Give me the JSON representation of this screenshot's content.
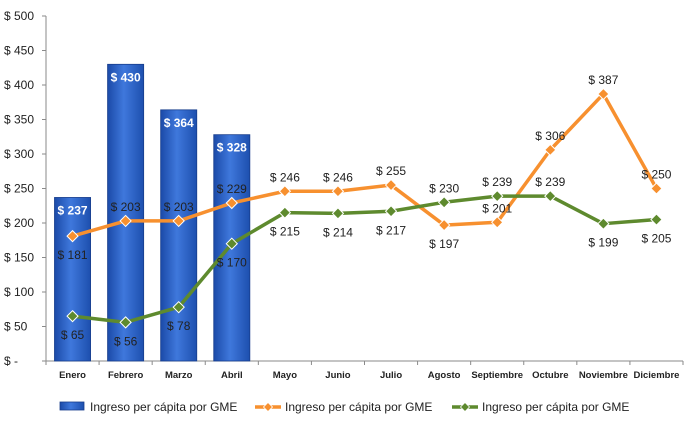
{
  "chart_data": {
    "type": "bar-line",
    "categories": [
      "Enero",
      "Febrero",
      "Marzo",
      "Abril",
      "Mayo",
      "Junio",
      "Julio",
      "Agosto",
      "Septiembre",
      "Octubre",
      "Noviembre",
      "Diciembre"
    ],
    "y_ticks": [
      "$ -",
      "$ 50",
      "$ 100",
      "$ 150",
      "$ 200",
      "$ 250",
      "$ 300",
      "$ 350",
      "$ 400",
      "$ 450",
      "$ 500"
    ],
    "ylim": [
      0,
      500
    ],
    "grid": false,
    "legend_position": "bottom",
    "series": [
      {
        "name": "Ingreso per cápita por GME",
        "type": "bar",
        "color": "#2e64c8",
        "values": [
          237,
          430,
          364,
          328,
          null,
          null,
          null,
          null,
          null,
          null,
          null,
          null
        ],
        "labels": [
          "$ 237",
          "$ 430",
          "$ 364",
          "$ 328",
          null,
          null,
          null,
          null,
          null,
          null,
          null,
          null
        ]
      },
      {
        "name": "Ingreso per cápita por GME",
        "type": "line",
        "color": "#f7902f",
        "values": [
          181,
          203,
          203,
          229,
          246,
          246,
          255,
          197,
          201,
          306,
          387,
          250
        ],
        "labels": [
          "$ 181",
          "$ 203",
          "$ 203",
          "$ 229",
          "$ 246",
          "$ 246",
          "$ 255",
          "$ 197",
          "$ 201",
          "$ 306",
          "$ 387",
          "$ 250"
        ],
        "label_pos": [
          "below",
          "above",
          "above",
          "above",
          "above",
          "above",
          "above",
          "below",
          "above",
          "above",
          "above",
          "above"
        ]
      },
      {
        "name": "Ingreso per cápita por GME",
        "type": "line",
        "color": "#5e8a2e",
        "values": [
          65,
          56,
          78,
          170,
          215,
          214,
          217,
          230,
          239,
          239,
          199,
          205
        ],
        "labels": [
          "$ 65",
          "$ 56",
          "$ 78",
          "$ 170",
          "$ 215",
          "$ 214",
          "$ 217",
          "$ 230",
          "$ 239",
          "$ 239",
          "$ 199",
          "$ 205"
        ],
        "label_pos": [
          "below",
          "below",
          "below",
          "below",
          "below",
          "below",
          "below",
          "above",
          "above",
          "above",
          "below",
          "below"
        ]
      }
    ]
  }
}
